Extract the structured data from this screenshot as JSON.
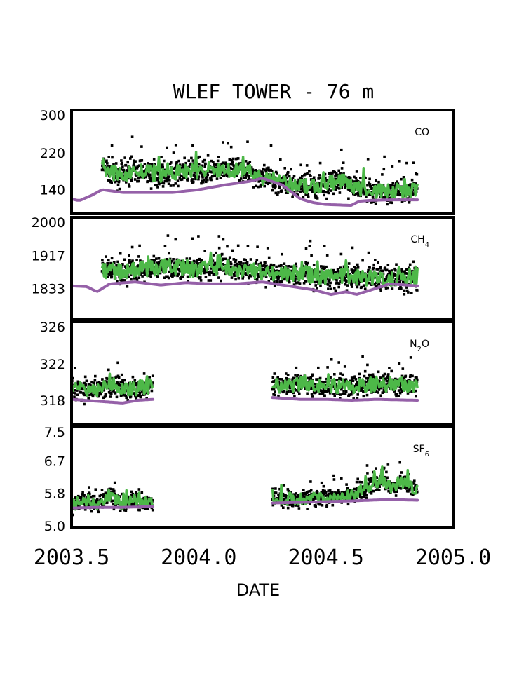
{
  "chart_data": {
    "type": "line",
    "title": "WLEF TOWER - 76 m",
    "xlabel": "DATE",
    "xlim": [
      2003.5,
      2005.0
    ],
    "xticks": [
      "2003.5",
      "2004.0",
      "2004.5",
      "2005.0"
    ],
    "xtick_values": [
      2003.5,
      2004.0,
      2004.5,
      2005.0
    ],
    "colors": {
      "observations": "#000000",
      "smoothed": "#4db848",
      "background": "#9560a8",
      "frame": "#000000"
    },
    "panels": [
      {
        "label": "CO",
        "ylim": [
          100,
          300
        ],
        "yticks": [
          "300",
          "220",
          "140"
        ],
        "ytick_values": [
          300,
          220,
          140
        ],
        "segments": [
          [
            2003.62,
            2004.86
          ]
        ],
        "background_x": [
          2003.5,
          2003.53,
          2003.58,
          2003.62,
          2003.7,
          2003.8,
          2003.9,
          2004.0,
          2004.1,
          2004.2,
          2004.25,
          2004.33,
          2004.4,
          2004.45,
          2004.5,
          2004.55,
          2004.6,
          2004.63,
          2004.68,
          2004.75,
          2004.86
        ],
        "background_y": [
          120,
          116,
          128,
          140,
          134,
          134,
          134,
          140,
          150,
          158,
          165,
          150,
          120,
          112,
          108,
          107,
          106,
          115,
          117,
          118,
          118
        ],
        "green_x": [
          2003.62,
          2003.68,
          2003.75,
          2003.85,
          2003.95,
          2004.05,
          2004.15,
          2004.25,
          2004.35,
          2004.45,
          2004.55,
          2004.65,
          2004.75,
          2004.86
        ],
        "green_y": [
          190,
          170,
          180,
          172,
          180,
          178,
          185,
          168,
          150,
          145,
          160,
          140,
          135,
          138
        ],
        "obs_spread": 38
      },
      {
        "label": "CH4",
        "label_main": "CH",
        "label_sub": "4",
        "ylim": [
          1770,
          2000
        ],
        "yticks": [
          "2000",
          "1917",
          "1833"
        ],
        "ytick_values": [
          2000,
          1917,
          1833
        ],
        "segments": [
          [
            2003.62,
            2004.86
          ]
        ],
        "background_x": [
          2003.5,
          2003.56,
          2003.6,
          2003.65,
          2003.75,
          2003.85,
          2003.95,
          2004.05,
          2004.15,
          2004.25,
          2004.35,
          2004.45,
          2004.52,
          2004.58,
          2004.62,
          2004.68,
          2004.75,
          2004.86
        ],
        "background_y": [
          1840,
          1838,
          1825,
          1845,
          1850,
          1842,
          1848,
          1845,
          1845,
          1850,
          1840,
          1830,
          1818,
          1825,
          1818,
          1830,
          1845,
          1840
        ],
        "green_x": [
          2003.62,
          2003.7,
          2003.8,
          2003.9,
          2004.0,
          2004.1,
          2004.2,
          2004.3,
          2004.4,
          2004.5,
          2004.6,
          2004.7,
          2004.8,
          2004.86
        ],
        "green_y": [
          1880,
          1875,
          1885,
          1890,
          1880,
          1890,
          1880,
          1870,
          1872,
          1860,
          1865,
          1858,
          1860,
          1862
        ],
        "obs_spread": 45
      },
      {
        "label": "N2O",
        "label_main": "N",
        "label_sub": "2",
        "label_tail": "O",
        "ylim": [
          316,
          326
        ],
        "yticks": [
          "326",
          "322",
          "318"
        ],
        "ytick_values": [
          326,
          322,
          318
        ],
        "segments": [
          [
            2003.5,
            2003.82
          ],
          [
            2004.29,
            2004.86
          ]
        ],
        "background_x": [
          2003.5,
          2003.6,
          2003.7,
          2003.76,
          2003.82,
          2004.29,
          2004.4,
          2004.5,
          2004.6,
          2004.7,
          2004.86
        ],
        "background_y": [
          318.1,
          317.9,
          317.7,
          318.0,
          318.1,
          318.3,
          318.1,
          318.1,
          318.0,
          318.1,
          318.0
        ],
        "green_x": [
          2003.5,
          2003.58,
          2003.65,
          2003.72,
          2003.82,
          2004.29,
          2004.4,
          2004.5,
          2004.6,
          2004.7,
          2004.86
        ],
        "green_y": [
          319.3,
          319.0,
          319.8,
          319.3,
          319.5,
          319.5,
          319.8,
          319.6,
          319.4,
          319.8,
          319.6
        ],
        "obs_spread": 1.8
      },
      {
        "label": "SF6",
        "label_main": "SF",
        "label_sub": "6",
        "ylim": [
          5.0,
          7.5
        ],
        "yticks": [
          "7.5",
          "6.7",
          "5.8",
          "5.0"
        ],
        "ytick_values": [
          7.5,
          6.7,
          5.8,
          5.0
        ],
        "segments": [
          [
            2003.5,
            2003.82
          ],
          [
            2004.29,
            2004.86
          ]
        ],
        "background_x": [
          2003.5,
          2003.6,
          2003.7,
          2003.82,
          2004.29,
          2004.45,
          2004.6,
          2004.75,
          2004.86
        ],
        "background_y": [
          5.38,
          5.4,
          5.4,
          5.42,
          5.52,
          5.55,
          5.58,
          5.62,
          5.6
        ],
        "green_x": [
          2003.5,
          2003.55,
          2003.6,
          2003.65,
          2003.7,
          2003.75,
          2003.82,
          2004.29,
          2004.45,
          2004.6,
          2004.68,
          2004.72,
          2004.76,
          2004.8,
          2004.86
        ],
        "green_y": [
          5.45,
          5.6,
          5.5,
          5.75,
          5.5,
          5.6,
          5.5,
          5.6,
          5.65,
          5.75,
          6.0,
          6.2,
          5.9,
          6.1,
          5.9
        ],
        "obs_spread": 0.35
      }
    ]
  }
}
